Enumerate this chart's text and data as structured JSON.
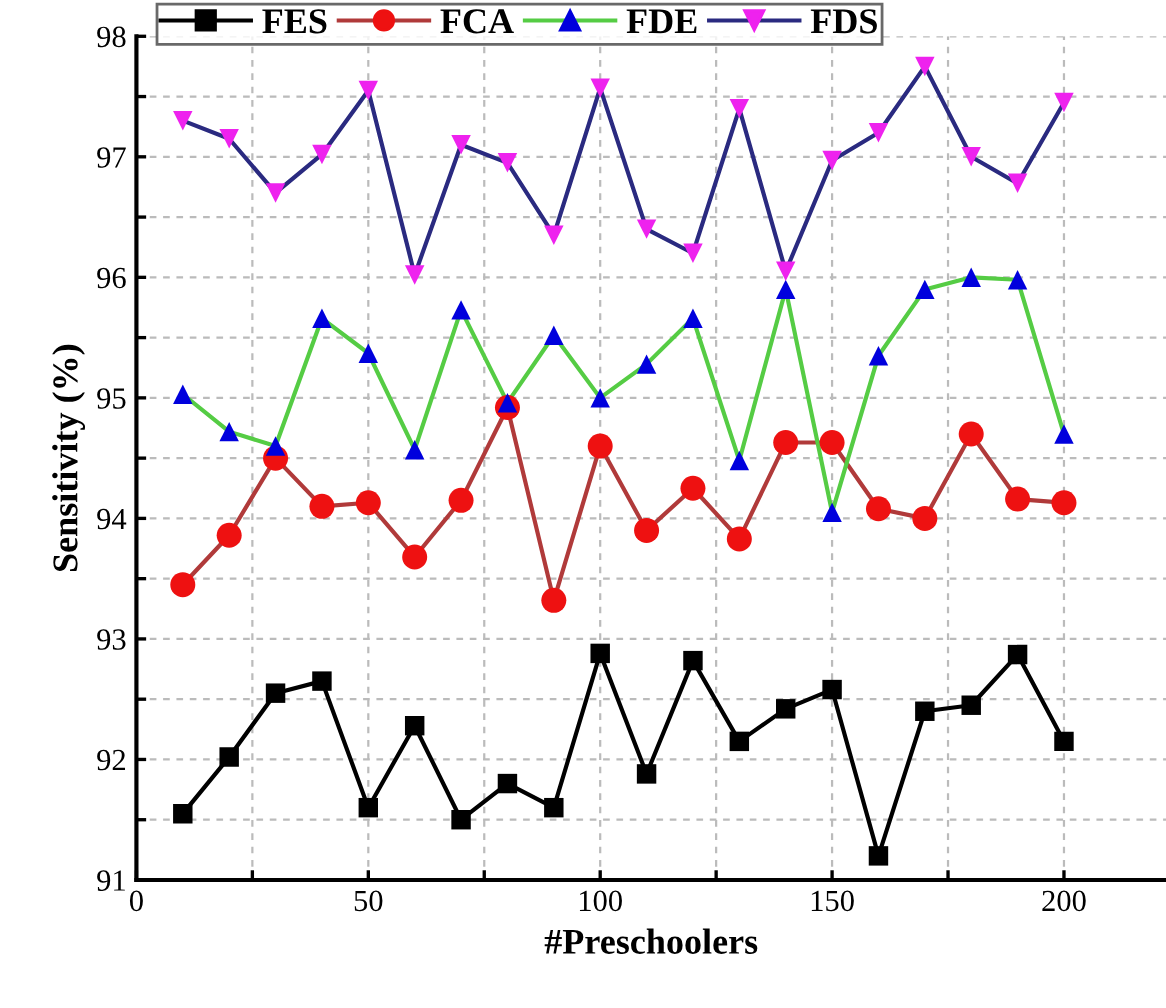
{
  "chart_data": {
    "type": "line",
    "xlabel": "#Preschoolers",
    "ylabel": "Sensitivity (%)",
    "x": [
      10,
      20,
      30,
      40,
      50,
      60,
      70,
      80,
      90,
      100,
      110,
      120,
      130,
      140,
      150,
      160,
      170,
      180,
      190,
      200
    ],
    "series": [
      {
        "name": "FES",
        "color": "#000000",
        "colors": [
          "#000000",
          "#000000",
          "#000000",
          "#000000",
          "#000000",
          "#000000",
          "#000000",
          "#000000",
          "#000000",
          "#000000",
          "#000000",
          "#000000",
          "#000000",
          "#000000",
          "#000000",
          "#000000",
          "#000000",
          "#000000",
          "#000000",
          "#000000"
        ],
        "marker": "square",
        "values": [
          91.55,
          92.02,
          92.55,
          92.65,
          91.6,
          92.28,
          91.5,
          91.8,
          91.6,
          92.88,
          91.88,
          92.82,
          92.15,
          92.42,
          92.58,
          91.2,
          92.4,
          92.45,
          92.87,
          92.15
        ]
      },
      {
        "name": "FCA",
        "color": "#b03a3a",
        "colors": [
          "#ee1111",
          "#ee1111",
          "#ee1111",
          "#ee1111",
          "#ee1111",
          "#ee1111",
          "#ee1111",
          "#ee1111",
          "#ee1111",
          "#ee1111",
          "#ee1111",
          "#ee1111",
          "#ee1111",
          "#ee1111",
          "#ee1111",
          "#ee1111",
          "#ee1111",
          "#ee1111",
          "#ee1111",
          "#ee1111"
        ],
        "marker": "circle",
        "values": [
          93.45,
          93.86,
          94.5,
          94.1,
          94.13,
          93.68,
          94.15,
          94.92,
          93.32,
          94.6,
          93.9,
          94.25,
          93.83,
          94.63,
          94.63,
          94.08,
          94.0,
          94.7,
          94.16,
          94.13
        ]
      },
      {
        "name": "FDE",
        "color": "#55cc44",
        "colors": [
          "#0000dd",
          "#0000dd",
          "#0000dd",
          "#0000dd",
          "#0000dd",
          "#0000dd",
          "#0000dd",
          "#0000dd",
          "#0000dd",
          "#0000dd",
          "#0000dd",
          "#0000dd",
          "#0000dd",
          "#0000dd",
          "#0000dd",
          "#0000dd",
          "#0000dd",
          "#0000dd",
          "#0000dd",
          "#0000dd"
        ],
        "marker": "triangle",
        "values": [
          95.03,
          94.72,
          94.6,
          95.66,
          95.37,
          94.57,
          95.73,
          94.96,
          95.52,
          95.0,
          95.28,
          95.66,
          94.48,
          95.9,
          94.05,
          95.35,
          95.9,
          96.0,
          95.98,
          94.7
        ]
      },
      {
        "name": "FDS",
        "color": "#2a2a80",
        "colors": [
          "#ee22ee",
          "#ee22ee",
          "#ee22ee",
          "#ee22ee",
          "#ee22ee",
          "#ee22ee",
          "#ee22ee",
          "#ee22ee",
          "#ee22ee",
          "#ee22ee",
          "#ee22ee",
          "#ee22ee",
          "#ee22ee",
          "#ee22ee",
          "#ee22ee",
          "#ee22ee",
          "#ee22ee",
          "#ee22ee",
          "#ee22ee",
          "#ee22ee"
        ],
        "marker": "triangle_down",
        "values": [
          97.3,
          97.15,
          96.7,
          97.02,
          97.55,
          96.02,
          97.1,
          96.95,
          96.35,
          97.57,
          96.4,
          96.2,
          97.4,
          96.05,
          96.97,
          97.2,
          97.75,
          97.0,
          96.78,
          97.45
        ]
      }
    ],
    "xlim": [
      0,
      222
    ],
    "ylim": [
      91,
      98
    ],
    "xticks": [
      0,
      {
        "value": 25,
        "label": null
      },
      50,
      {
        "value": 75,
        "label": null
      },
      100,
      {
        "value": 125,
        "label": null
      },
      150,
      {
        "value": 175,
        "label": null
      },
      200
    ],
    "yticks": [
      91,
      {
        "value": 91.5,
        "label": null
      },
      92,
      {
        "value": 92.5,
        "label": null
      },
      93,
      {
        "value": 93.5,
        "label": null
      },
      94,
      {
        "value": 94.5,
        "label": null
      },
      95,
      {
        "value": 95.5,
        "label": null
      },
      96,
      {
        "value": 96.5,
        "label": null
      },
      97,
      {
        "value": 97.5,
        "label": null
      },
      98
    ],
    "grid": true,
    "legend": "top"
  }
}
